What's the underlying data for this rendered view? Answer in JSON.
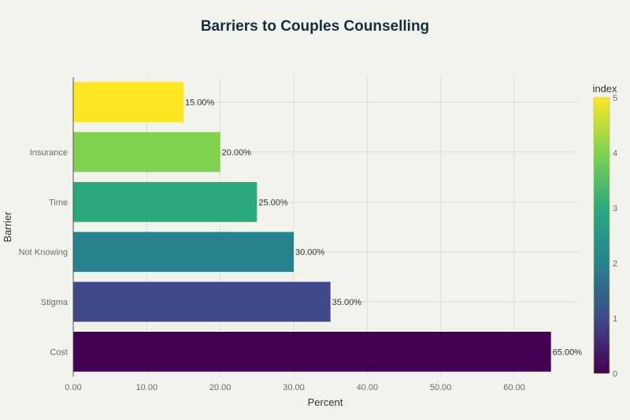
{
  "chart_data": {
    "type": "bar",
    "orientation": "horizontal",
    "title": "Barriers to Couples Counselling",
    "xlabel": "Percent",
    "ylabel": "Barrier",
    "categories": [
      "Cost",
      "Stigma",
      "Not Knowing",
      "Time",
      "Insurance",
      ""
    ],
    "values": [
      65,
      35,
      30,
      25,
      20,
      15
    ],
    "data_labels": [
      "65.00%",
      "35.00%",
      "30.00%",
      "25.00%",
      "20.00%",
      "15.00%"
    ],
    "color_index": [
      0,
      1,
      2,
      3,
      4,
      5
    ],
    "colors": [
      "#440154",
      "#3e4a89",
      "#26828e",
      "#2ba97f",
      "#7ed24f",
      "#fde725"
    ],
    "xlim": [
      0,
      70
    ],
    "xticks": [
      "0.00",
      "10.00",
      "20.00",
      "30.00",
      "40.00",
      "50.00",
      "60.00"
    ],
    "xtick_values": [
      0,
      10,
      20,
      30,
      40,
      50,
      60
    ],
    "grid": true,
    "colorbar": {
      "title": "index",
      "range": [
        0,
        5
      ],
      "ticks": [
        "0",
        "1",
        "2",
        "3",
        "4",
        "5"
      ],
      "colorscale": "viridis",
      "placement": "right"
    }
  }
}
